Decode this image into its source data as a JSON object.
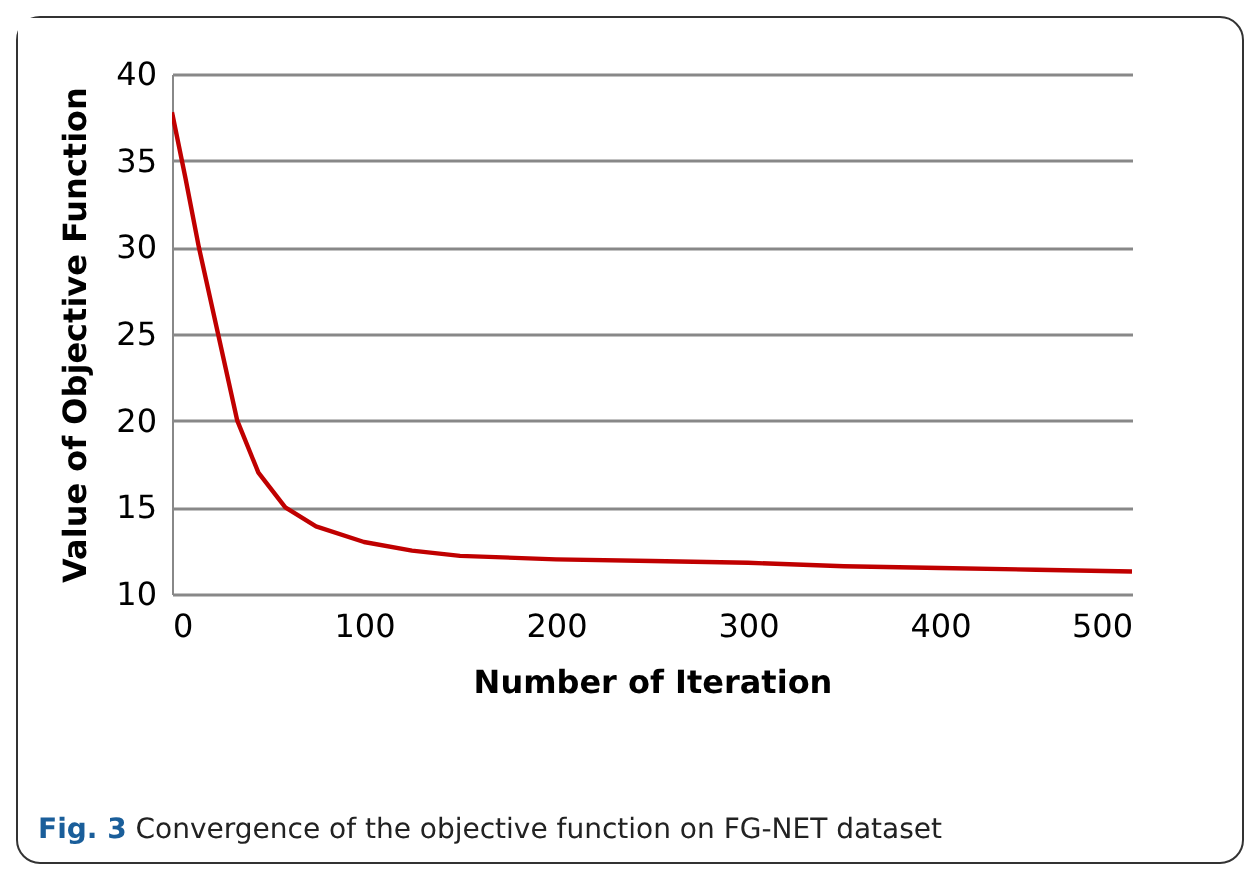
{
  "chart_data": {
    "type": "line",
    "xlabel": "Number of Iteration",
    "ylabel": "Value of Objective Function",
    "annotations": [
      "Fig. 3 Convergence of the objective function on FG-NET dataset"
    ],
    "x": [
      0,
      7,
      14,
      24,
      34,
      45,
      59,
      75,
      100,
      125,
      150,
      200,
      250,
      300,
      350,
      400,
      450,
      500
    ],
    "series": [
      {
        "color": "#c00000",
        "values": [
          37.8,
          34,
          30,
          25,
          20,
          17,
          15,
          13.9,
          13,
          12.5,
          12.2,
          12,
          11.9,
          11.8,
          11.6,
          11.5,
          11.4,
          11.3
        ]
      }
    ],
    "xlim": [
      0,
      500
    ],
    "xticks": [
      0,
      100,
      200,
      300,
      400,
      500
    ],
    "ylim": [
      10,
      40
    ],
    "yticks": [
      10,
      15,
      20,
      25,
      30,
      35,
      40
    ],
    "grid": "y",
    "legend": false,
    "marker": "none",
    "line_style": "solid"
  }
}
